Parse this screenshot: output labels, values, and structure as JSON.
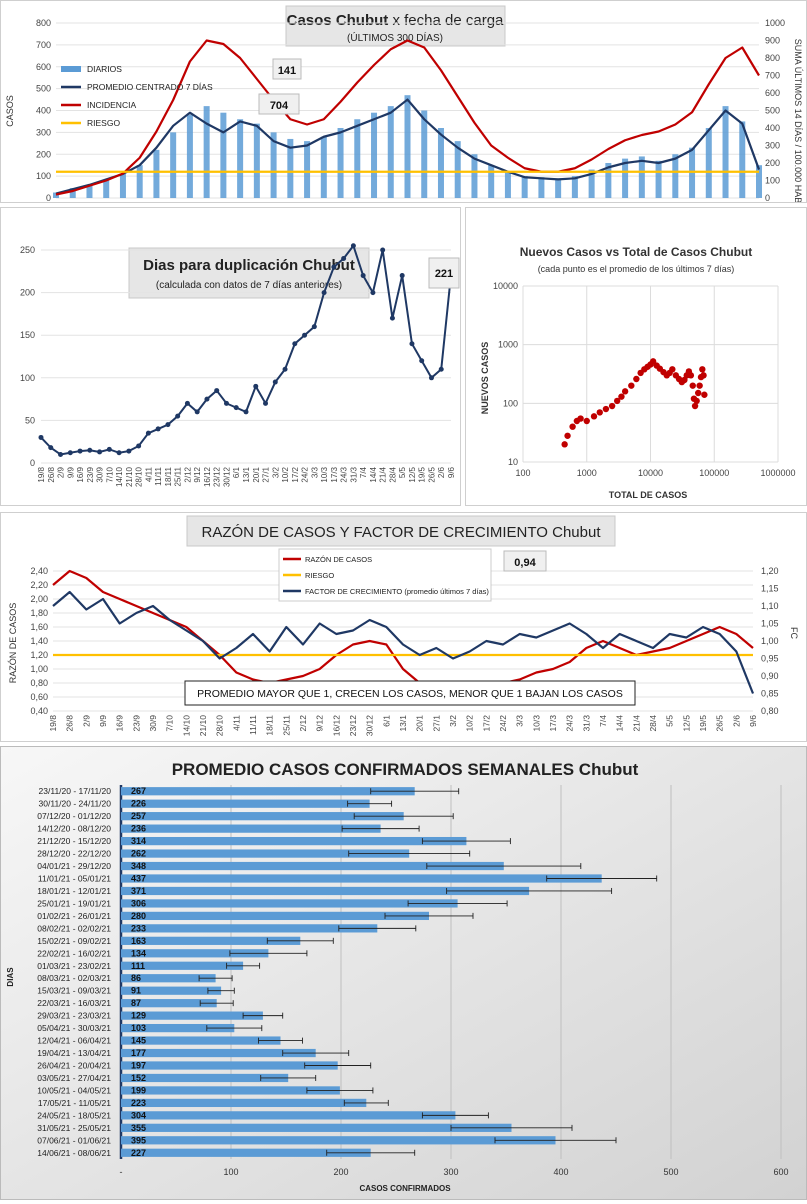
{
  "chart_data": [
    {
      "type": "bar+line",
      "title": "Casos Chubut x fecha de carga",
      "subtitle": "(ÚLTIMOS 300 DÍAS)",
      "ylabel": "CASOS",
      "y2label": "SUMA ÚLTIMOS 14 DÍAS / 100.000 HAB",
      "ylim": [
        0,
        800
      ],
      "y2lim": [
        0,
        1000
      ],
      "yticks": [
        "0",
        "100",
        "200",
        "300",
        "400",
        "500",
        "600",
        "700",
        "800"
      ],
      "y2ticks": [
        "0",
        "100",
        "200",
        "300",
        "400",
        "500",
        "600",
        "700",
        "800",
        "900",
        "1000"
      ],
      "categories": [
        "19/8",
        "26/8",
        "2/9",
        "9/9",
        "16/9",
        "23/9",
        "30/9",
        "7/10",
        "14/10",
        "21/10",
        "28/10",
        "4/11",
        "11/11",
        "18/11",
        "25/11",
        "2/12",
        "9/12",
        "16/12",
        "23/12",
        "30/12",
        "6/1",
        "13/1",
        "20/1",
        "27/1",
        "3/2",
        "10/2",
        "17/2",
        "24/2",
        "3/3",
        "10/3",
        "17/3",
        "24/3",
        "31/3",
        "7/4",
        "14/4",
        "21/4",
        "28/4",
        "5/5",
        "12/5",
        "19/5",
        "26/5",
        "2/6",
        "9/6"
      ],
      "annotations": [
        "141",
        "704"
      ],
      "series": [
        {
          "name": "DIARIOS",
          "color": "#5b9bd5",
          "values": [
            25,
            45,
            60,
            80,
            110,
            150,
            220,
            300,
            380,
            420,
            390,
            360,
            340,
            300,
            270,
            260,
            280,
            320,
            360,
            390,
            420,
            470,
            400,
            320,
            260,
            200,
            150,
            120,
            100,
            95,
            90,
            100,
            130,
            160,
            180,
            190,
            170,
            200,
            230,
            320,
            420,
            350,
            150
          ]
        },
        {
          "name": "PROMEDIO CENTRADO 7 DÍAS",
          "color": "#1f3864",
          "values": [
            20,
            40,
            60,
            85,
            110,
            150,
            230,
            330,
            390,
            340,
            300,
            350,
            330,
            260,
            230,
            240,
            280,
            300,
            330,
            360,
            390,
            450,
            360,
            290,
            230,
            180,
            150,
            120,
            95,
            90,
            85,
            90,
            110,
            140,
            160,
            170,
            160,
            180,
            220,
            310,
            400,
            340,
            130
          ]
        },
        {
          "name": "INCIDENCIA",
          "color": "#c00000",
          "values": [
            20,
            40,
            70,
            100,
            140,
            230,
            380,
            560,
            780,
            900,
            880,
            800,
            680,
            560,
            450,
            420,
            450,
            550,
            660,
            760,
            850,
            900,
            860,
            730,
            580,
            430,
            300,
            230,
            170,
            150,
            150,
            170,
            220,
            280,
            330,
            360,
            380,
            420,
            490,
            650,
            800,
            860,
            700
          ]
        },
        {
          "name": "RIESGO",
          "color": "#ffc000",
          "values": [
            120,
            120,
            120,
            120,
            120,
            120,
            120,
            120,
            120,
            120,
            120,
            120,
            120,
            120,
            120,
            120,
            120,
            120,
            120,
            120,
            120,
            120,
            120,
            120,
            120,
            120,
            120,
            120,
            120,
            120,
            120,
            120,
            120,
            120,
            120,
            120,
            120,
            120,
            120,
            120,
            120,
            120,
            120
          ]
        }
      ]
    },
    {
      "type": "line",
      "title": "Dias para duplicación Chubut",
      "subtitle": "(calculada con datos de 7 días anteriores)",
      "ylim": [
        0,
        250
      ],
      "yticks": [
        "0",
        "50",
        "100",
        "150",
        "200",
        "250"
      ],
      "categories": [
        "19/8",
        "26/8",
        "2/9",
        "9/9",
        "16/9",
        "23/9",
        "30/9",
        "7/10",
        "14/10",
        "21/10",
        "28/10",
        "4/11",
        "11/11",
        "18/11",
        "25/11",
        "2/12",
        "9/12",
        "16/12",
        "23/12",
        "30/12",
        "6/1",
        "13/1",
        "20/1",
        "27/1",
        "3/2",
        "10/2",
        "17/2",
        "24/2",
        "3/3",
        "10/3",
        "17/3",
        "24/3",
        "31/3",
        "7/4",
        "14/4",
        "21/4",
        "28/4",
        "5/5",
        "12/5",
        "19/5",
        "26/5",
        "2/6",
        "9/6"
      ],
      "annotations": [
        "221"
      ],
      "series": [
        {
          "color": "#1f3864",
          "values": [
            30,
            18,
            10,
            12,
            14,
            15,
            13,
            16,
            12,
            14,
            20,
            35,
            40,
            45,
            55,
            70,
            60,
            75,
            85,
            70,
            65,
            60,
            90,
            70,
            95,
            110,
            140,
            150,
            160,
            200,
            230,
            240,
            260,
            220,
            200,
            250,
            170,
            220,
            140,
            120,
            100,
            110,
            221
          ]
        }
      ]
    },
    {
      "type": "scatter",
      "title": "Nuevos Casos vs Total de Casos Chubut",
      "subtitle": "(cada punto es el promedio de los últimos 7 días)",
      "xlabel": "TOTAL DE CASOS",
      "ylabel": "NUEVOS CASOS",
      "xscale": "log",
      "yscale": "log",
      "xticks": [
        "100",
        "1000",
        "10000",
        "100000",
        "1000000"
      ],
      "yticks": [
        "10",
        "100",
        "1000",
        "10000"
      ],
      "series": [
        {
          "color": "#c00000",
          "points": [
            [
              450,
              20
            ],
            [
              500,
              28
            ],
            [
              600,
              40
            ],
            [
              700,
              50
            ],
            [
              800,
              55
            ],
            [
              1000,
              50
            ],
            [
              1300,
              60
            ],
            [
              1600,
              70
            ],
            [
              2000,
              80
            ],
            [
              2500,
              90
            ],
            [
              3000,
              110
            ],
            [
              3500,
              130
            ],
            [
              4000,
              160
            ],
            [
              5000,
              200
            ],
            [
              6000,
              260
            ],
            [
              7000,
              330
            ],
            [
              8000,
              380
            ],
            [
              9000,
              420
            ],
            [
              10000,
              460
            ],
            [
              11000,
              520
            ],
            [
              12500,
              440
            ],
            [
              14000,
              390
            ],
            [
              16000,
              340
            ],
            [
              18000,
              300
            ],
            [
              20000,
              330
            ],
            [
              22000,
              380
            ],
            [
              25000,
              300
            ],
            [
              28000,
              260
            ],
            [
              31000,
              230
            ],
            [
              34000,
              250
            ],
            [
              37000,
              300
            ],
            [
              40000,
              350
            ],
            [
              43000,
              300
            ],
            [
              46000,
              200
            ],
            [
              48000,
              120
            ],
            [
              50000,
              90
            ],
            [
              53000,
              110
            ],
            [
              56000,
              150
            ],
            [
              59000,
              200
            ],
            [
              62000,
              280
            ],
            [
              65000,
              380
            ],
            [
              68000,
              300
            ],
            [
              70000,
              140
            ]
          ]
        }
      ]
    },
    {
      "type": "line",
      "title": "RAZÓN DE CASOS Y FACTOR DE CRECIMIENTO Chubut",
      "ylabel": "RAZÓN DE CASOS",
      "y2label": "FC",
      "ylim": [
        0.4,
        2.4
      ],
      "y2lim": [
        0.8,
        1.2
      ],
      "yticks": [
        "0,40",
        "0,60",
        "0,80",
        "1,00",
        "1,20",
        "1,40",
        "1,60",
        "1,80",
        "2,00",
        "2,20",
        "2,40"
      ],
      "y2ticks": [
        "0,80",
        "0,85",
        "0,90",
        "0,95",
        "1,00",
        "1,05",
        "1,10",
        "1,15",
        "1,20"
      ],
      "annotations": [
        "0,94",
        "PROMEDIO MAYOR QUE 1, CRECEN LOS CASOS, MENOR QUE 1 BAJAN LOS CASOS"
      ],
      "categories": [
        "19/8",
        "26/8",
        "2/9",
        "9/9",
        "16/9",
        "23/9",
        "30/9",
        "7/10",
        "14/10",
        "21/10",
        "28/10",
        "4/11",
        "11/11",
        "18/11",
        "25/11",
        "2/12",
        "9/12",
        "16/12",
        "23/12",
        "30/12",
        "6/1",
        "13/1",
        "20/1",
        "27/1",
        "3/2",
        "10/2",
        "17/2",
        "24/2",
        "3/3",
        "10/3",
        "17/3",
        "24/3",
        "31/3",
        "7/4",
        "14/4",
        "21/4",
        "28/4",
        "5/5",
        "12/5",
        "19/5",
        "26/5",
        "2/6",
        "9/6"
      ],
      "series": [
        {
          "name": "RAZÓN DE CASOS",
          "color": "#c00000",
          "axis": "left",
          "values": [
            2.2,
            2.4,
            2.3,
            2.1,
            2.0,
            1.9,
            1.8,
            1.7,
            1.6,
            1.4,
            1.2,
            0.95,
            0.85,
            0.8,
            0.85,
            0.9,
            1.0,
            1.2,
            1.35,
            1.4,
            1.35,
            1.0,
            0.8,
            0.72,
            0.75,
            0.8,
            0.82,
            0.8,
            0.85,
            0.95,
            1.0,
            1.1,
            1.3,
            1.4,
            1.3,
            1.2,
            1.25,
            1.3,
            1.4,
            1.5,
            1.6,
            1.5,
            1.3
          ]
        },
        {
          "name": "RIESGO",
          "color": "#ffc000",
          "axis": "left",
          "values": [
            1.2,
            1.2,
            1.2,
            1.2,
            1.2,
            1.2,
            1.2,
            1.2,
            1.2,
            1.2,
            1.2,
            1.2,
            1.2,
            1.2,
            1.2,
            1.2,
            1.2,
            1.2,
            1.2,
            1.2,
            1.2,
            1.2,
            1.2,
            1.2,
            1.2,
            1.2,
            1.2,
            1.2,
            1.2,
            1.2,
            1.2,
            1.2,
            1.2,
            1.2,
            1.2,
            1.2,
            1.2,
            1.2,
            1.2,
            1.2,
            1.2,
            1.2,
            1.2
          ]
        },
        {
          "name": "FACTOR DE CRECIMIENTO (promedio últimos 7 días)",
          "color": "#1f3864",
          "axis": "right",
          "values": [
            1.1,
            1.14,
            1.09,
            1.12,
            1.05,
            1.08,
            1.1,
            1.06,
            1.03,
            1.0,
            0.95,
            0.98,
            1.02,
            0.97,
            1.04,
            0.99,
            1.05,
            1.02,
            1.03,
            1.06,
            1.04,
            0.99,
            0.96,
            0.98,
            0.95,
            0.97,
            1.0,
            0.99,
            1.02,
            1.01,
            1.03,
            1.05,
            1.02,
            0.98,
            1.02,
            1.0,
            0.98,
            1.02,
            1.01,
            1.04,
            1.02,
            0.97,
            0.85
          ]
        }
      ]
    },
    {
      "type": "bar",
      "orientation": "horizontal",
      "title": "PROMEDIO CASOS CONFIRMADOS SEMANALES Chubut",
      "xlabel": "CASOS CONFIRMADOS",
      "ylabel": "DIAS",
      "xlim": [
        0,
        600
      ],
      "xticks": [
        "-",
        "100",
        "200",
        "300",
        "400",
        "500",
        "600"
      ],
      "categories": [
        "23/11/20 - 17/11/20",
        "30/11/20 - 24/11/20",
        "07/12/20 - 01/12/20",
        "14/12/20 - 08/12/20",
        "21/12/20 - 15/12/20",
        "28/12/20 - 22/12/20",
        "04/01/21 - 29/12/20",
        "11/01/21 - 05/01/21",
        "18/01/21 - 12/01/21",
        "25/01/21 - 19/01/21",
        "01/02/21 - 26/01/21",
        "08/02/21 - 02/02/21",
        "15/02/21 - 09/02/21",
        "22/02/21 - 16/02/21",
        "01/03/21 - 23/02/21",
        "08/03/21 - 02/03/21",
        "15/03/21 - 09/03/21",
        "22/03/21 - 16/03/21",
        "29/03/21 - 23/03/21",
        "05/04/21 - 30/03/21",
        "12/04/21 - 06/04/21",
        "19/04/21 - 13/04/21",
        "26/04/21 - 20/04/21",
        "03/05/21 - 27/04/21",
        "10/05/21 - 04/05/21",
        "17/05/21 - 11/05/21",
        "24/05/21 - 18/05/21",
        "31/05/21 - 25/05/21",
        "07/06/21 - 01/06/21",
        "14/06/21 - 08/06/21"
      ],
      "values": [
        267,
        226,
        257,
        236,
        314,
        262,
        348,
        437,
        371,
        306,
        280,
        233,
        163,
        134,
        111,
        86,
        91,
        87,
        129,
        103,
        145,
        177,
        197,
        152,
        199,
        223,
        304,
        355,
        395,
        227
      ],
      "errors": [
        40,
        20,
        45,
        35,
        40,
        55,
        70,
        50,
        75,
        45,
        40,
        35,
        30,
        35,
        15,
        15,
        12,
        15,
        18,
        25,
        20,
        30,
        30,
        25,
        30,
        20,
        30,
        55,
        55,
        40
      ],
      "color": "#5b9bd5"
    }
  ]
}
